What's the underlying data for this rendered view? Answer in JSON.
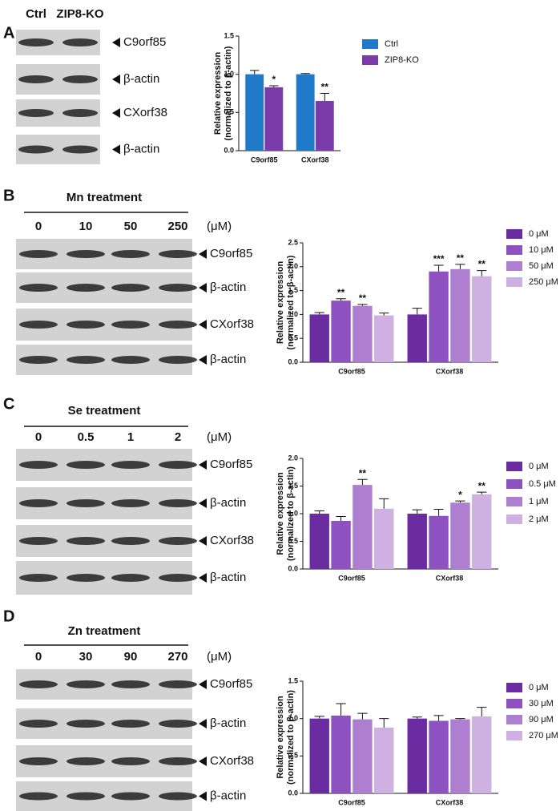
{
  "blots": [
    {
      "letter": "A",
      "lanes": [
        "Ctrl",
        "ZIP8-KO"
      ],
      "lane_colors": [
        "#1f7bc9",
        "#7a3aa8"
      ],
      "bands": [
        "C9orf85",
        "β-actin",
        "CXorf38",
        "β-actin"
      ]
    },
    {
      "letter": "B",
      "title": "Mn treatment",
      "lanes": [
        "0",
        "10",
        "50",
        "250"
      ],
      "unit": "(μM)",
      "bands": [
        "C9orf85",
        "β-actin",
        "CXorf38",
        "β-actin"
      ]
    },
    {
      "letter": "C",
      "title": "Se treatment",
      "lanes": [
        "0",
        "0.5",
        "1",
        "2"
      ],
      "unit": "(μM)",
      "bands": [
        "C9orf85",
        "β-actin",
        "CXorf38",
        "β-actin"
      ]
    },
    {
      "letter": "D",
      "title": "Zn treatment",
      "lanes": [
        "0",
        "30",
        "90",
        "270"
      ],
      "unit": "(μM)",
      "bands": [
        "C9orf85",
        "β-actin",
        "CXorf38",
        "β-actin"
      ]
    }
  ],
  "chart_data": [
    {
      "type": "bar",
      "ylabel": [
        "Relative expression",
        "(normalized to β-actin)"
      ],
      "categories": [
        "C9orf85",
        "CXorf38"
      ],
      "ylim": [
        0,
        1.5
      ],
      "yticks": [
        {
          "value": 0,
          "label": "0.0"
        },
        0.5,
        {
          "value": 1,
          "label": "1.0"
        },
        1.5
      ],
      "series": [
        {
          "name": "Ctrl",
          "color": "#1f7bc9",
          "values": [
            1.0,
            1.0
          ],
          "errors": [
            0.05,
            0.01
          ],
          "significance": [
            null,
            null
          ]
        },
        {
          "name": "ZIP8-KO",
          "color": "#7a3aa8",
          "values": [
            0.83,
            0.65
          ],
          "errors": [
            0.02,
            0.1
          ],
          "significance": [
            "*",
            "**"
          ]
        }
      ]
    },
    {
      "type": "bar",
      "ylabel": [
        "Relative expression",
        "(normalized to β-actin)"
      ],
      "categories": [
        "C9orf85",
        "CXorf38"
      ],
      "ylim": [
        0,
        2.5
      ],
      "yticks": [
        {
          "value": 0,
          "label": "0.0"
        },
        0.5,
        {
          "value": 1,
          "label": "1.0"
        },
        1.5,
        {
          "value": 2,
          "label": "2.0"
        },
        2.5
      ],
      "series": [
        {
          "name": "0 μM",
          "color": "#6a2ca0",
          "values": [
            1.0,
            1.0
          ],
          "errors": [
            0.04,
            0.13
          ],
          "significance": [
            null,
            null
          ]
        },
        {
          "name": "10 μM",
          "color": "#8e52c0",
          "values": [
            1.29,
            1.9
          ],
          "errors": [
            0.04,
            0.13
          ],
          "significance": [
            "**",
            "***"
          ]
        },
        {
          "name": "50 μM",
          "color": "#ae7fd0",
          "values": [
            1.18,
            1.95
          ],
          "errors": [
            0.03,
            0.1
          ],
          "significance": [
            "**",
            "**"
          ]
        },
        {
          "name": "250 μM",
          "color": "#cfb0e3",
          "values": [
            0.98,
            1.8
          ],
          "errors": [
            0.05,
            0.12
          ],
          "significance": [
            null,
            "**"
          ]
        }
      ]
    },
    {
      "type": "bar",
      "ylabel": [
        "Relative expression",
        "(normalized to β-actin)"
      ],
      "categories": [
        "C9orf85",
        "CXorf38"
      ],
      "ylim": [
        0,
        2
      ],
      "yticks": [
        {
          "value": 0,
          "label": "0.0"
        },
        0.5,
        {
          "value": 1,
          "label": "1.0"
        },
        1.5,
        {
          "value": 2,
          "label": "2.0"
        }
      ],
      "series": [
        {
          "name": "0 μM",
          "color": "#6a2ca0",
          "values": [
            1.0,
            1.0
          ],
          "errors": [
            0.05,
            0.07
          ],
          "significance": [
            null,
            null
          ]
        },
        {
          "name": "0.5 μM",
          "color": "#8e52c0",
          "values": [
            0.87,
            0.96
          ],
          "errors": [
            0.08,
            0.12
          ],
          "significance": [
            null,
            null
          ]
        },
        {
          "name": "1 μM",
          "color": "#ae7fd0",
          "values": [
            1.52,
            1.2
          ],
          "errors": [
            0.1,
            0.03
          ],
          "significance": [
            "**",
            "*"
          ]
        },
        {
          "name": "2 μM",
          "color": "#cfb0e3",
          "values": [
            1.09,
            1.35
          ],
          "errors": [
            0.18,
            0.04
          ],
          "significance": [
            null,
            "**"
          ]
        }
      ]
    },
    {
      "type": "bar",
      "ylabel": [
        "Relative expression",
        "(normalized to β-actin)"
      ],
      "categories": [
        "C9orf85",
        "CXorf38"
      ],
      "ylim": [
        0,
        1.5
      ],
      "yticks": [
        {
          "value": 0,
          "label": "0.0"
        },
        0.5,
        {
          "value": 1,
          "label": "1.0"
        },
        1.5
      ],
      "series": [
        {
          "name": "0 μM",
          "color": "#6a2ca0",
          "values": [
            1.0,
            1.0
          ],
          "errors": [
            0.03,
            0.02
          ],
          "significance": [
            null,
            null
          ]
        },
        {
          "name": "30 μM",
          "color": "#8e52c0",
          "values": [
            1.04,
            0.97
          ],
          "errors": [
            0.16,
            0.07
          ],
          "significance": [
            null,
            null
          ]
        },
        {
          "name": "90 μM",
          "color": "#ae7fd0",
          "values": [
            0.99,
            0.99
          ],
          "errors": [
            0.08,
            0.01
          ],
          "significance": [
            null,
            null
          ]
        },
        {
          "name": "270 μM",
          "color": "#cfb0e3",
          "values": [
            0.88,
            1.03
          ],
          "errors": [
            0.12,
            0.12
          ],
          "significance": [
            null,
            null
          ]
        }
      ]
    }
  ]
}
